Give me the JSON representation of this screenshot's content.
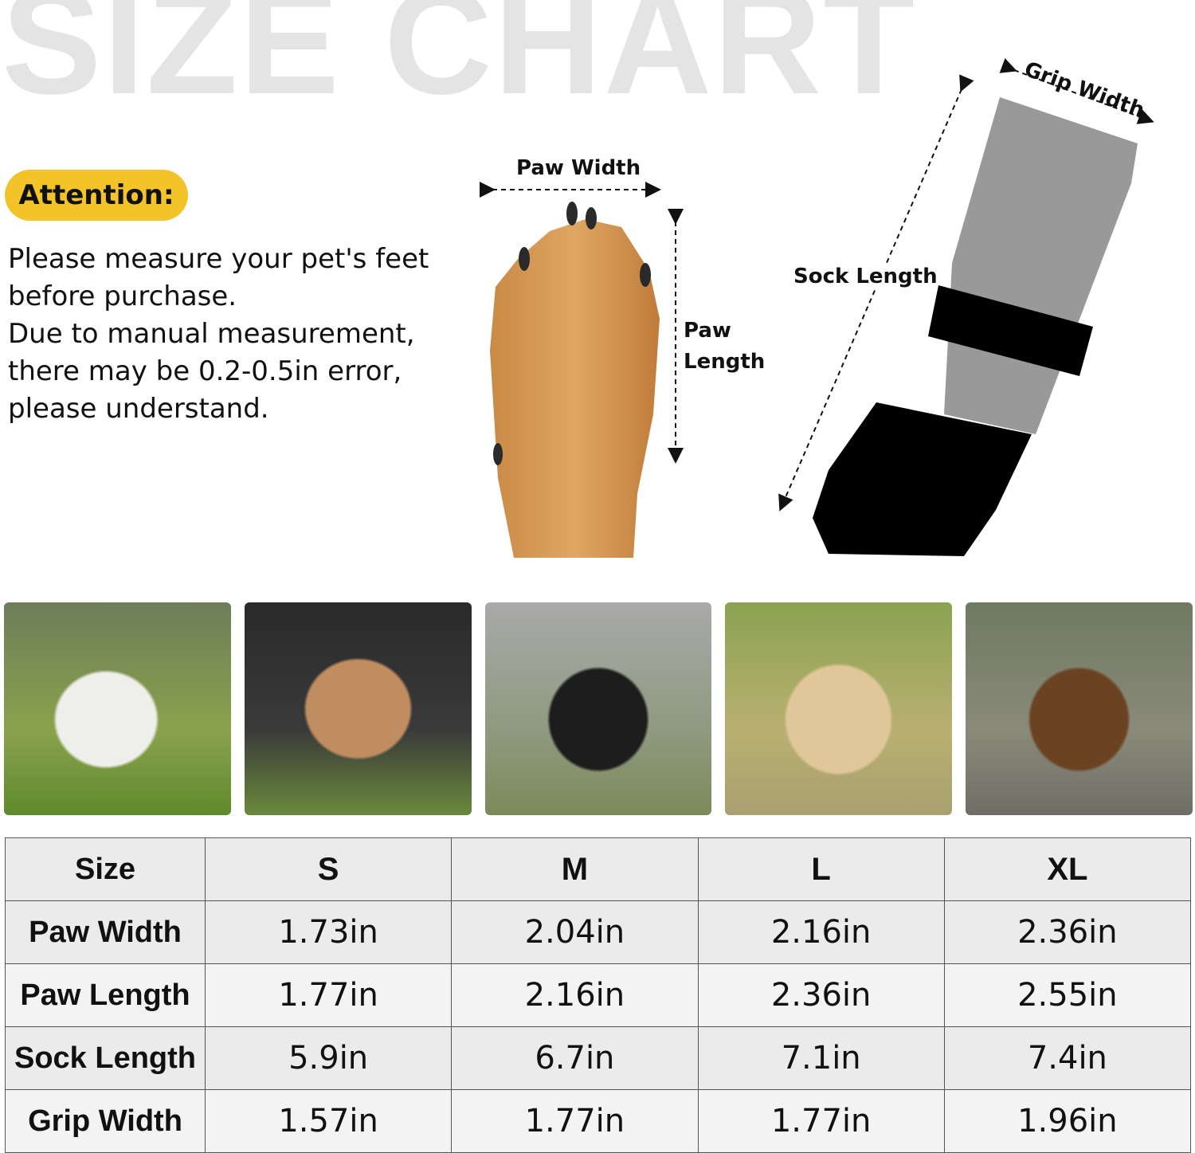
{
  "title": "SIZE CHART",
  "attention": {
    "label": "Attention:",
    "lines": [
      "Please measure your pet's feet",
      "before purchase.",
      "Due to manual measurement,",
      "there may be 0.2-0.5in error,",
      "please understand."
    ],
    "badge_color": "#f2c42a"
  },
  "diagram": {
    "paw_width": "Paw Width",
    "paw_length_1": "Paw",
    "paw_length_2": "Length",
    "sock_length": "Sock Length",
    "grip_width": "Grip Width"
  },
  "dogs": [
    "west-highland-terrier-photo",
    "french-bulldog-photo",
    "border-collie-photo",
    "labrador-photo",
    "german-shepherd-photo"
  ],
  "table": {
    "header": [
      "Size",
      "S",
      "M",
      "L",
      "XL"
    ],
    "rows": [
      [
        "Paw Width",
        "1.73in",
        "2.04in",
        "2.16in",
        "2.36in"
      ],
      [
        "Paw Length",
        "1.77in",
        "2.16in",
        "2.36in",
        "2.55in"
      ],
      [
        "Sock Length",
        "5.9in",
        "6.7in",
        "7.1in",
        "7.4in"
      ],
      [
        "Grip Width",
        "1.57in",
        "1.77in",
        "1.77in",
        "1.96in"
      ]
    ]
  }
}
